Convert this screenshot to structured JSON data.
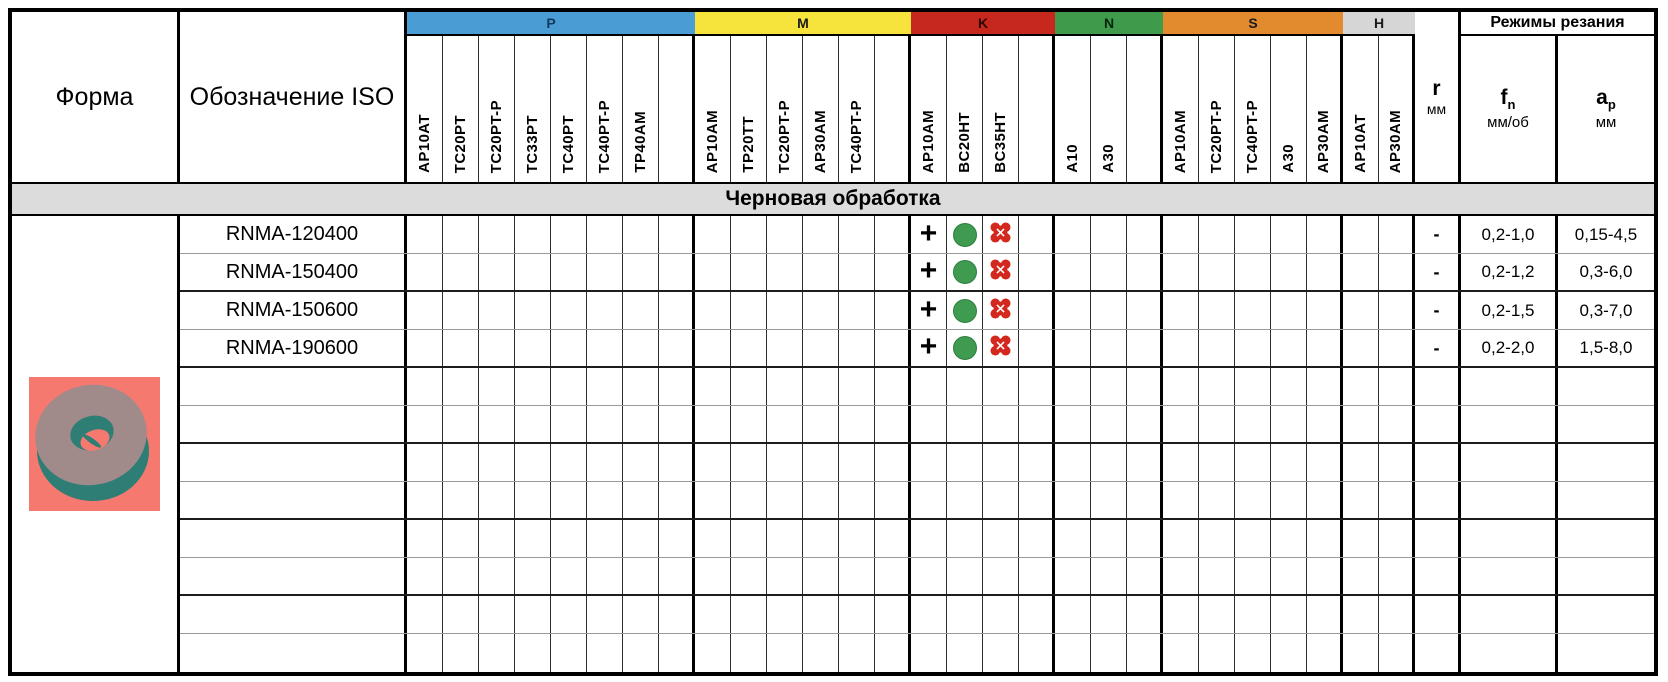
{
  "table": {
    "forma_header": "Форма",
    "iso_header": "Обозначение ISO",
    "groups": [
      {
        "id": "P",
        "label": "P",
        "band_color": "#4A9CD5",
        "letter_color": "#113A5F",
        "columns": [
          "AP10AT",
          "TC20PT",
          "TC20PT-P",
          "TC33PT",
          "TC40PT",
          "TC40PT-P",
          "TP40AM",
          ""
        ]
      },
      {
        "id": "M",
        "label": "M",
        "band_color": "#F6E33C",
        "letter_color": "#1a1a1a",
        "columns": [
          "AP10AM",
          "TP20TT",
          "TC20PT-P",
          "AP30AM",
          "TC40PT-P",
          ""
        ]
      },
      {
        "id": "K",
        "label": "K",
        "band_color": "#C6281E",
        "letter_color": "#2b0502",
        "columns": [
          "AP10AM",
          "BC20HT",
          "BC35HT",
          ""
        ]
      },
      {
        "id": "N",
        "label": "N",
        "band_color": "#3F9B4B",
        "letter_color": "#08260f",
        "columns": [
          "A10",
          "A30",
          ""
        ]
      },
      {
        "id": "S",
        "label": "S",
        "band_color": "#E28A2E",
        "letter_color": "#1a1a1a",
        "columns": [
          "AP10AM",
          "TC20PT-P",
          "TC40PT-P",
          "A30",
          "AP30AM"
        ]
      },
      {
        "id": "H",
        "label": "H",
        "band_color": "#D6D6D6",
        "letter_color": "#1a1a1a",
        "columns": [
          "AP10AT",
          "AP30AM"
        ]
      }
    ],
    "r": {
      "label": "r",
      "unit": "мм"
    },
    "modes": {
      "label": "Режимы резания",
      "fn": {
        "sym": "f",
        "sub": "n",
        "unit": "мм/об"
      },
      "ap": {
        "sym": "a",
        "sub": "p",
        "unit": "мм"
      }
    },
    "section_title": "Черновая обработка",
    "rows": [
      {
        "iso": "RNMA-120400",
        "marks": {
          "K": [
            "plus-icon",
            "green-dot-icon",
            "red-splat-icon",
            ""
          ]
        },
        "r": "-",
        "fn": "0,2-1,0",
        "ap": "0,15-4,5"
      },
      {
        "iso": "RNMA-150400",
        "marks": {
          "K": [
            "plus-icon",
            "green-dot-icon",
            "red-splat-icon",
            ""
          ]
        },
        "r": "-",
        "fn": "0,2-1,2",
        "ap": "0,3-6,0"
      },
      {
        "iso": "RNMA-150600",
        "marks": {
          "K": [
            "plus-icon",
            "green-dot-icon",
            "red-splat-icon",
            ""
          ]
        },
        "r": "-",
        "fn": "0,2-1,5",
        "ap": "0,3-7,0"
      },
      {
        "iso": "RNMA-190600",
        "marks": {
          "K": [
            "plus-icon",
            "green-dot-icon",
            "red-splat-icon",
            ""
          ]
        },
        "r": "-",
        "fn": "0,2-2,0",
        "ap": "1,5-8,0"
      },
      {
        "iso": "",
        "marks": {},
        "r": "",
        "fn": "",
        "ap": ""
      },
      {
        "iso": "",
        "marks": {},
        "r": "",
        "fn": "",
        "ap": ""
      },
      {
        "iso": "",
        "marks": {},
        "r": "",
        "fn": "",
        "ap": ""
      },
      {
        "iso": "",
        "marks": {},
        "r": "",
        "fn": "",
        "ap": ""
      },
      {
        "iso": "",
        "marks": {},
        "r": "",
        "fn": "",
        "ap": ""
      },
      {
        "iso": "",
        "marks": {},
        "r": "",
        "fn": "",
        "ap": ""
      },
      {
        "iso": "",
        "marks": {},
        "r": "",
        "fn": "",
        "ap": ""
      },
      {
        "iso": "",
        "marks": {},
        "r": "",
        "fn": "",
        "ap": ""
      }
    ]
  },
  "icons": {
    "plus_glyph": "+",
    "green_dot_color": "#3E9B4F",
    "green_dot_edge": "#2F7F3F",
    "red_splat_color": "#D3281E"
  },
  "shape_image": {
    "bg": "#F5796F",
    "top_face": "#A18A8A",
    "side": "#2E7E76"
  }
}
